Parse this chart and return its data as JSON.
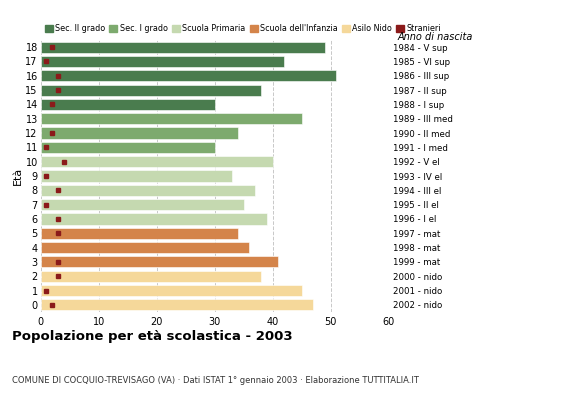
{
  "ages": [
    18,
    17,
    16,
    15,
    14,
    13,
    12,
    11,
    10,
    9,
    8,
    7,
    6,
    5,
    4,
    3,
    2,
    1,
    0
  ],
  "bar_values": [
    49,
    42,
    51,
    38,
    30,
    45,
    34,
    30,
    40,
    33,
    37,
    35,
    39,
    34,
    36,
    41,
    38,
    45,
    47
  ],
  "stranieri_values": [
    2,
    1,
    3,
    3,
    2,
    0,
    2,
    1,
    4,
    1,
    3,
    1,
    3,
    3,
    0,
    3,
    3,
    1,
    2
  ],
  "anno_nascita": [
    "1984 - V sup",
    "1985 - VI sup",
    "1986 - III sup",
    "1987 - II sup",
    "1988 - I sup",
    "1989 - III med",
    "1990 - II med",
    "1991 - I med",
    "1992 - V el",
    "1993 - IV el",
    "1994 - III el",
    "1995 - II el",
    "1996 - I el",
    "1997 - mat",
    "1998 - mat",
    "1999 - mat",
    "2000 - nido",
    "2001 - nido",
    "2002 - nido"
  ],
  "colors": {
    "sec_II": "#4a7c4e",
    "sec_I": "#7daa6e",
    "primaria": "#c5d9b0",
    "infanzia": "#d4844a",
    "nido": "#f5d89a",
    "stranieri": "#8b1a1a"
  },
  "legend_labels": [
    "Sec. II grado",
    "Sec. I grado",
    "Scuola Primaria",
    "Scuola dell'Infanzia",
    "Asilo Nido",
    "Stranieri"
  ],
  "title": "Popolazione per età scolastica - 2003",
  "subtitle": "COMUNE DI COCQUIO-TREVISAGO (VA) · Dati ISTAT 1° gennaio 2003 · Elaborazione TUTTITALIA.IT",
  "eta_label": "Età",
  "anno_label": "Anno di nascita",
  "xlim": [
    0,
    60
  ],
  "xticks": [
    0,
    10,
    20,
    30,
    40,
    50,
    60
  ],
  "background_color": "#ffffff",
  "grid_color": "#c8c8c8"
}
